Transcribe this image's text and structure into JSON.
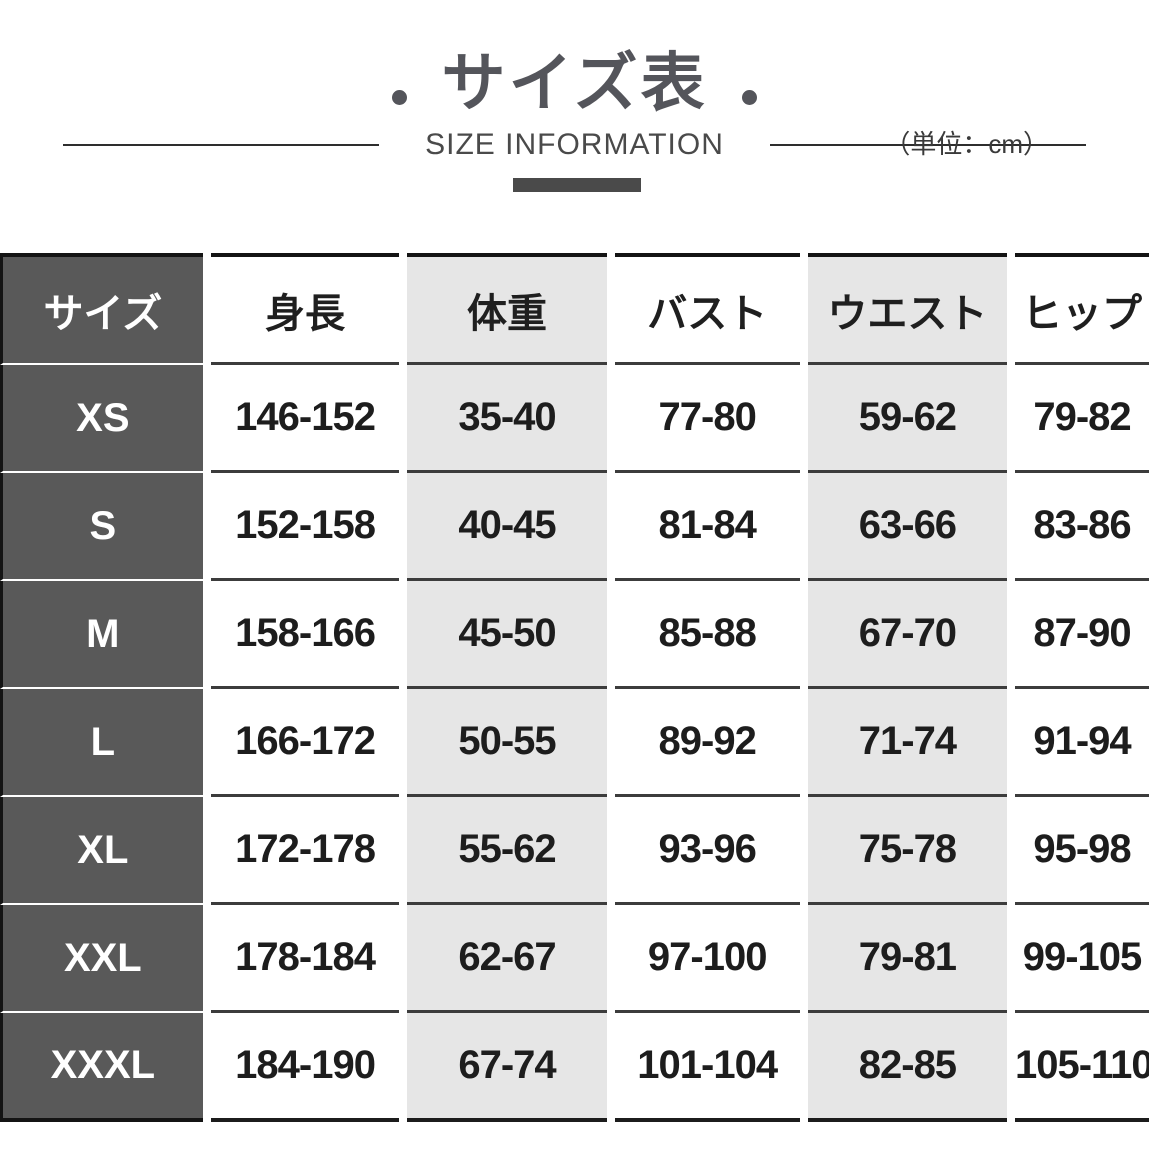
{
  "header": {
    "title": "サイズ表",
    "subtitle": "SIZE INFORMATION",
    "unit_note": "（単位：cm）"
  },
  "chart_data": {
    "type": "table",
    "title": "サイズ表",
    "subtitle": "SIZE INFORMATION",
    "unit": "（単位：cm）",
    "columns": [
      "サイズ",
      "身長",
      "体重",
      "バスト",
      "ウエスト",
      "ヒップ"
    ],
    "rows": [
      [
        "XS",
        "146-152",
        "35-40",
        "77-80",
        "59-62",
        "79-82"
      ],
      [
        "S",
        "152-158",
        "40-45",
        "81-84",
        "63-66",
        "83-86"
      ],
      [
        "M",
        "158-166",
        "45-50",
        "85-88",
        "67-70",
        "87-90"
      ],
      [
        "L",
        "166-172",
        "50-55",
        "89-92",
        "71-74",
        "91-94"
      ],
      [
        "XL",
        "172-178",
        "55-62",
        "93-96",
        "75-78",
        "95-98"
      ],
      [
        "XXL",
        "178-184",
        "62-67",
        "97-100",
        "79-81",
        "99-105"
      ],
      [
        "XXXL",
        "184-190",
        "67-74",
        "101-104",
        "82-85",
        "105-110"
      ]
    ]
  },
  "colors": {
    "size_column_bg": "#595959",
    "shaded_column_bg": "#e6e6e6",
    "row_separator": "#3c3c3c",
    "accent_bar": "#4a4a4a",
    "title_text": "#54555b"
  }
}
